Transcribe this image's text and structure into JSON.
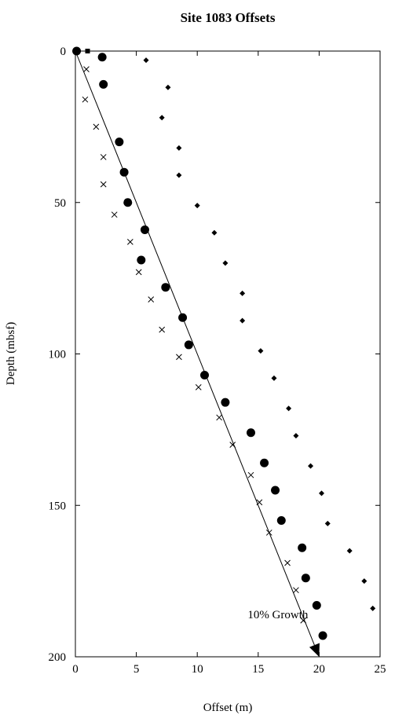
{
  "chart_data": {
    "type": "scatter",
    "title": "Site 1083 Offsets",
    "xlabel": "Offset (m)",
    "ylabel": "Depth (mbsf)",
    "xlim": [
      0,
      25
    ],
    "ylim": [
      0,
      200
    ],
    "y_inverted": true,
    "x_ticks": [
      "0",
      "5",
      "10",
      "15",
      "20",
      "25"
    ],
    "y_ticks": [
      "0",
      "50",
      "100",
      "150",
      "200"
    ],
    "grid": false,
    "series": [
      {
        "marker": "circle",
        "points": [
          [
            0.1,
            0
          ],
          [
            2.2,
            2
          ],
          [
            2.3,
            11
          ],
          [
            3.6,
            30
          ],
          [
            4.0,
            40
          ],
          [
            4.3,
            50
          ],
          [
            5.7,
            59
          ],
          [
            5.4,
            69
          ],
          [
            7.4,
            78
          ],
          [
            8.8,
            88
          ],
          [
            9.3,
            97
          ],
          [
            10.6,
            107
          ],
          [
            12.3,
            116
          ],
          [
            14.4,
            126
          ],
          [
            15.5,
            136
          ],
          [
            16.4,
            145
          ],
          [
            16.9,
            155
          ],
          [
            18.6,
            164
          ],
          [
            18.9,
            174
          ],
          [
            19.8,
            183
          ],
          [
            20.3,
            193
          ]
        ]
      },
      {
        "marker": "x",
        "points": [
          [
            0.9,
            6
          ],
          [
            0.8,
            16
          ],
          [
            1.7,
            25
          ],
          [
            2.3,
            35
          ],
          [
            2.3,
            44
          ],
          [
            3.2,
            54
          ],
          [
            4.5,
            63
          ],
          [
            5.2,
            73
          ],
          [
            6.2,
            82
          ],
          [
            7.1,
            92
          ],
          [
            8.5,
            101
          ],
          [
            10.1,
            111
          ],
          [
            11.8,
            121
          ],
          [
            12.9,
            130
          ],
          [
            14.4,
            140
          ],
          [
            15.1,
            149
          ],
          [
            15.9,
            159
          ],
          [
            17.4,
            169
          ],
          [
            18.1,
            178
          ],
          [
            18.7,
            188
          ]
        ]
      },
      {
        "marker": "diamond",
        "points": [
          [
            5.8,
            3
          ],
          [
            7.6,
            12
          ],
          [
            7.1,
            22
          ],
          [
            8.5,
            32
          ],
          [
            8.5,
            41
          ],
          [
            10.0,
            51
          ],
          [
            11.4,
            60
          ],
          [
            12.3,
            70
          ],
          [
            13.7,
            80
          ],
          [
            13.7,
            89
          ],
          [
            15.2,
            99
          ],
          [
            16.3,
            108
          ],
          [
            17.5,
            118
          ],
          [
            18.1,
            127
          ],
          [
            19.3,
            137
          ],
          [
            20.2,
            146
          ],
          [
            20.7,
            156
          ],
          [
            22.5,
            165
          ],
          [
            23.7,
            175
          ],
          [
            24.4,
            184
          ]
        ]
      },
      {
        "marker": "square",
        "points": [
          [
            1.0,
            0
          ]
        ]
      }
    ],
    "reference_line": {
      "label": "10% Growth",
      "from": [
        0,
        0
      ],
      "to": [
        20,
        200
      ]
    }
  }
}
